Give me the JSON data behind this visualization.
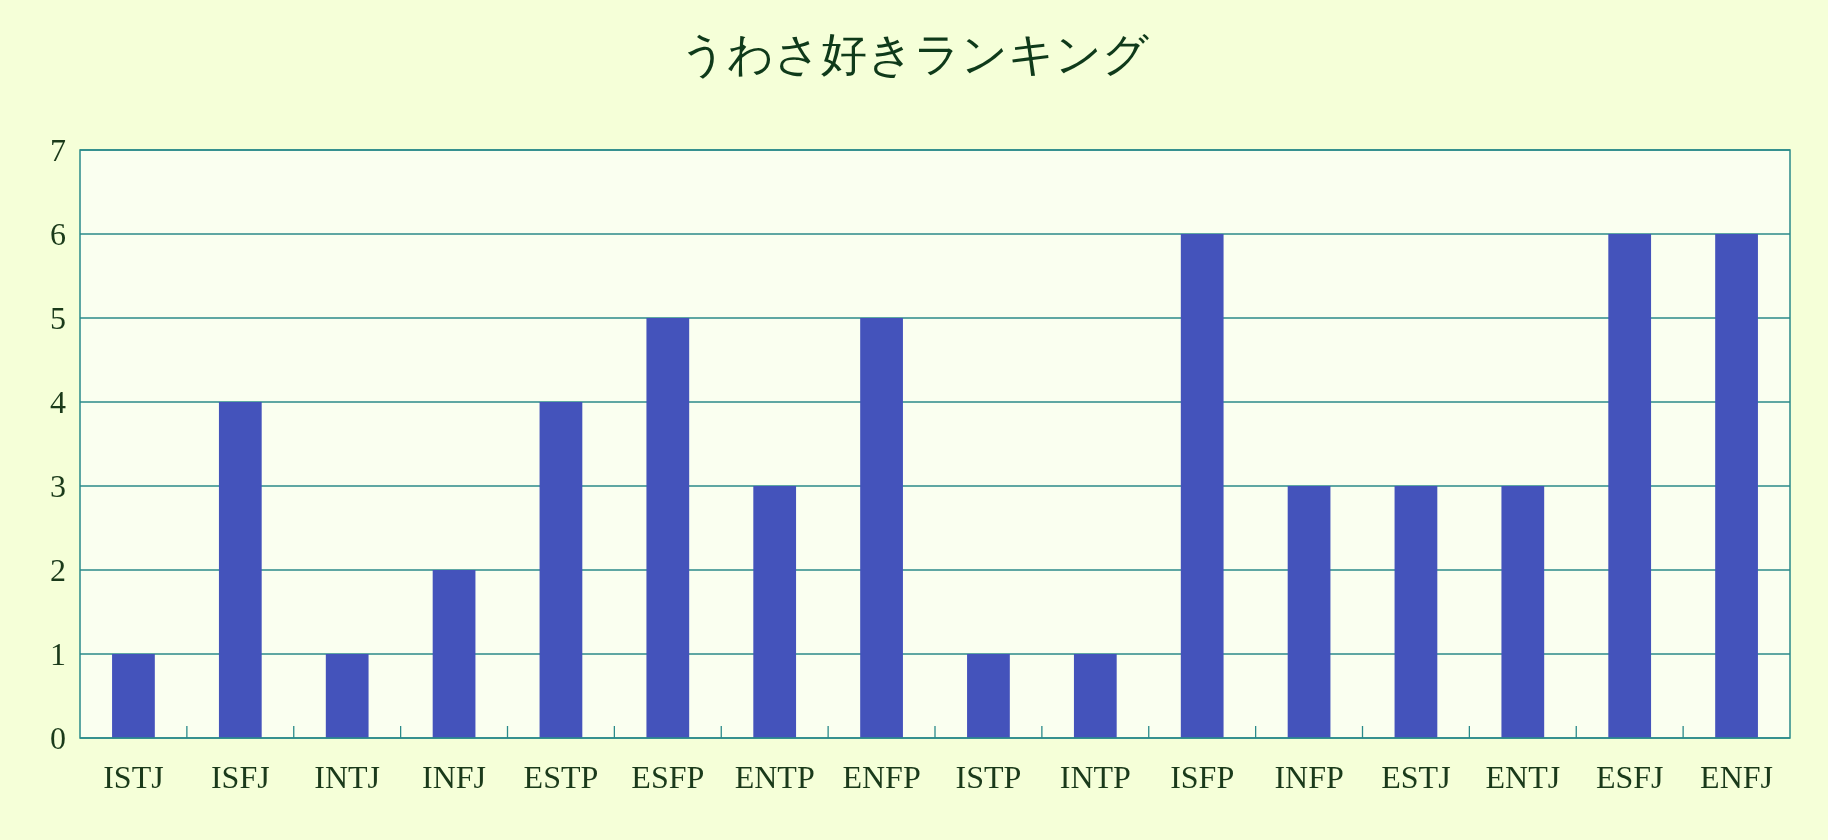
{
  "chart_data": {
    "type": "bar",
    "title": "うわさ好きランキング",
    "categories": [
      "ISTJ",
      "ISFJ",
      "INTJ",
      "INFJ",
      "ESTP",
      "ESFP",
      "ENTP",
      "ENFP",
      "ISTP",
      "INTP",
      "ISFP",
      "INFP",
      "ESTJ",
      "ENTJ",
      "ESFJ",
      "ENFJ"
    ],
    "values": [
      1,
      4,
      1,
      2,
      4,
      5,
      3,
      5,
      1,
      1,
      6,
      3,
      3,
      3,
      6,
      6
    ],
    "color": "#4453bb",
    "ylim": [
      0,
      7
    ],
    "yticks": [
      0,
      1,
      2,
      3,
      4,
      5,
      6,
      7
    ],
    "grid": "y"
  }
}
